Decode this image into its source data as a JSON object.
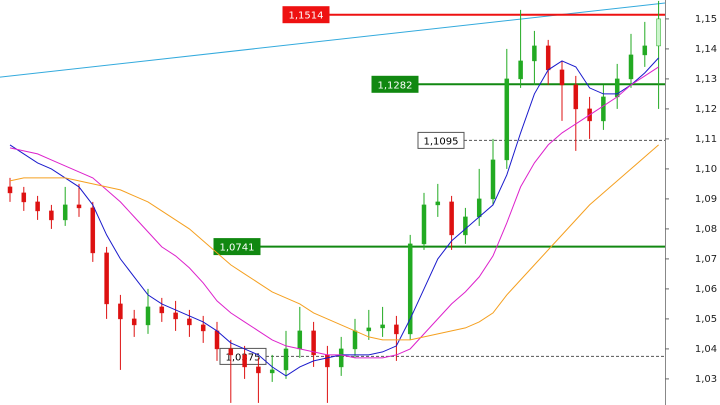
{
  "chart_data": {
    "type": "candlestick",
    "ylim": [
      1.0213,
      1.1563
    ],
    "yticks": [
      {
        "value": 1.03,
        "label": "1,03"
      },
      {
        "value": 1.04,
        "label": "1,04"
      },
      {
        "value": 1.05,
        "label": "1,05"
      },
      {
        "value": 1.06,
        "label": "1,06"
      },
      {
        "value": 1.07,
        "label": "1,07"
      },
      {
        "value": 1.08,
        "label": "1,08"
      },
      {
        "value": 1.09,
        "label": "1,09"
      },
      {
        "value": 1.1,
        "label": "1,10"
      },
      {
        "value": 1.11,
        "label": "1,11"
      },
      {
        "value": 1.12,
        "label": "1,12"
      },
      {
        "value": 1.13,
        "label": "1,13"
      },
      {
        "value": 1.14,
        "label": "1,14"
      },
      {
        "value": 1.15,
        "label": "1,15"
      }
    ],
    "up_color": "#22aa22",
    "down_color": "#dd1111",
    "open": [
      1.094,
      1.092,
      1.089,
      1.086,
      1.083,
      1.088,
      1.087,
      1.072,
      1.055,
      1.05,
      1.048,
      1.054,
      1.052,
      1.05,
      1.048,
      1.046,
      1.04,
      1.038,
      1.034,
      1.032,
      1.033,
      1.04,
      1.046,
      1.038,
      1.034,
      1.04,
      1.046,
      1.047,
      1.048,
      1.045,
      1.075,
      1.088,
      1.089,
      1.078,
      1.084,
      1.09,
      1.103,
      1.13,
      1.136,
      1.141,
      1.133,
      1.128,
      1.12,
      1.116,
      1.124,
      1.13,
      1.138,
      1.141
    ],
    "high": [
      1.097,
      1.094,
      1.091,
      1.088,
      1.094,
      1.095,
      1.089,
      1.074,
      1.058,
      1.053,
      1.06,
      1.057,
      1.056,
      1.053,
      1.051,
      1.049,
      1.043,
      1.041,
      1.037,
      1.038,
      1.046,
      1.054,
      1.049,
      1.041,
      1.044,
      1.05,
      1.053,
      1.054,
      1.051,
      1.078,
      1.092,
      1.095,
      1.091,
      1.087,
      1.1,
      1.11,
      1.14,
      1.153,
      1.146,
      1.143,
      1.136,
      1.131,
      1.124,
      1.128,
      1.135,
      1.145,
      1.149,
      1.156
    ],
    "low": [
      1.089,
      1.086,
      1.083,
      1.08,
      1.081,
      1.084,
      1.069,
      1.05,
      1.033,
      1.044,
      1.045,
      1.049,
      1.046,
      1.044,
      1.042,
      1.036,
      1.022,
      1.03,
      1.022,
      1.029,
      1.03,
      1.037,
      1.034,
      1.022,
      1.031,
      1.037,
      1.043,
      1.044,
      1.036,
      1.043,
      1.073,
      1.084,
      1.073,
      1.075,
      1.081,
      1.088,
      1.1,
      1.127,
      1.128,
      1.128,
      1.116,
      1.106,
      1.11,
      1.113,
      1.12,
      1.127,
      1.134,
      1.12
    ],
    "close": [
      1.092,
      1.089,
      1.086,
      1.083,
      1.088,
      1.087,
      1.072,
      1.055,
      1.05,
      1.048,
      1.054,
      1.052,
      1.05,
      1.048,
      1.046,
      1.04,
      1.038,
      1.034,
      1.032,
      1.033,
      1.04,
      1.046,
      1.038,
      1.034,
      1.04,
      1.046,
      1.047,
      1.048,
      1.045,
      1.075,
      1.088,
      1.089,
      1.078,
      1.084,
      1.09,
      1.103,
      1.13,
      1.136,
      1.141,
      1.133,
      1.128,
      1.12,
      1.116,
      1.124,
      1.13,
      1.138,
      1.141,
      1.15
    ],
    "series": [
      {
        "color": "#1a1acc",
        "values": [
          1.108,
          1.105,
          1.102,
          1.1,
          1.097,
          1.094,
          1.088,
          1.078,
          1.07,
          1.064,
          1.058,
          1.055,
          1.053,
          1.051,
          1.049,
          1.046,
          1.042,
          1.04,
          1.038,
          1.034,
          1.031,
          1.034,
          1.036,
          1.037,
          1.038,
          1.038,
          1.038,
          1.039,
          1.041,
          1.05,
          1.06,
          1.07,
          1.076,
          1.08,
          1.084,
          1.088,
          1.098,
          1.112,
          1.125,
          1.133,
          1.136,
          1.134,
          1.127,
          1.125,
          1.125,
          1.128,
          1.132,
          1.137
        ]
      },
      {
        "color": "#dd22cc",
        "values": [
          1.107,
          1.106,
          1.105,
          1.103,
          1.101,
          1.099,
          1.097,
          1.093,
          1.089,
          1.084,
          1.079,
          1.074,
          1.071,
          1.067,
          1.062,
          1.056,
          1.052,
          1.049,
          1.046,
          1.043,
          1.041,
          1.04,
          1.039,
          1.038,
          1.038,
          1.037,
          1.037,
          1.037,
          1.038,
          1.04,
          1.045,
          1.05,
          1.055,
          1.059,
          1.064,
          1.071,
          1.082,
          1.094,
          1.102,
          1.108,
          1.112,
          1.115,
          1.118,
          1.121,
          1.124,
          1.128,
          1.131,
          1.134
        ]
      },
      {
        "color": "#f5a020",
        "values": [
          1.096,
          1.097,
          1.097,
          1.097,
          1.097,
          1.096,
          1.095,
          1.094,
          1.093,
          1.091,
          1.089,
          1.086,
          1.083,
          1.08,
          1.076,
          1.072,
          1.068,
          1.065,
          1.062,
          1.059,
          1.057,
          1.055,
          1.052,
          1.05,
          1.048,
          1.046,
          1.044,
          1.043,
          1.043,
          1.043,
          1.044,
          1.045,
          1.046,
          1.047,
          1.049,
          1.052,
          1.058,
          1.063,
          1.068,
          1.073,
          1.078,
          1.083,
          1.088,
          1.092,
          1.096,
          1.1,
          1.104,
          1.108
        ]
      }
    ],
    "trendline": {
      "color": "#33aadd",
      "values": [
        1.1306,
        1.1553
      ]
    },
    "levels": [
      {
        "value": 1.1514,
        "label": "1,1514",
        "color": "#ee1111",
        "style": "solid"
      },
      {
        "value": 1.1282,
        "label": "1,1282",
        "color": "#118811",
        "style": "solid"
      },
      {
        "value": 1.1095,
        "label": "1,1095",
        "color": "#555555",
        "style": "dashed"
      },
      {
        "value": 1.0741,
        "label": "1,0741",
        "color": "#118811",
        "style": "solid"
      },
      {
        "value": 1.0375,
        "label": "1,0375",
        "color": "#555555",
        "style": "dashed"
      }
    ]
  }
}
